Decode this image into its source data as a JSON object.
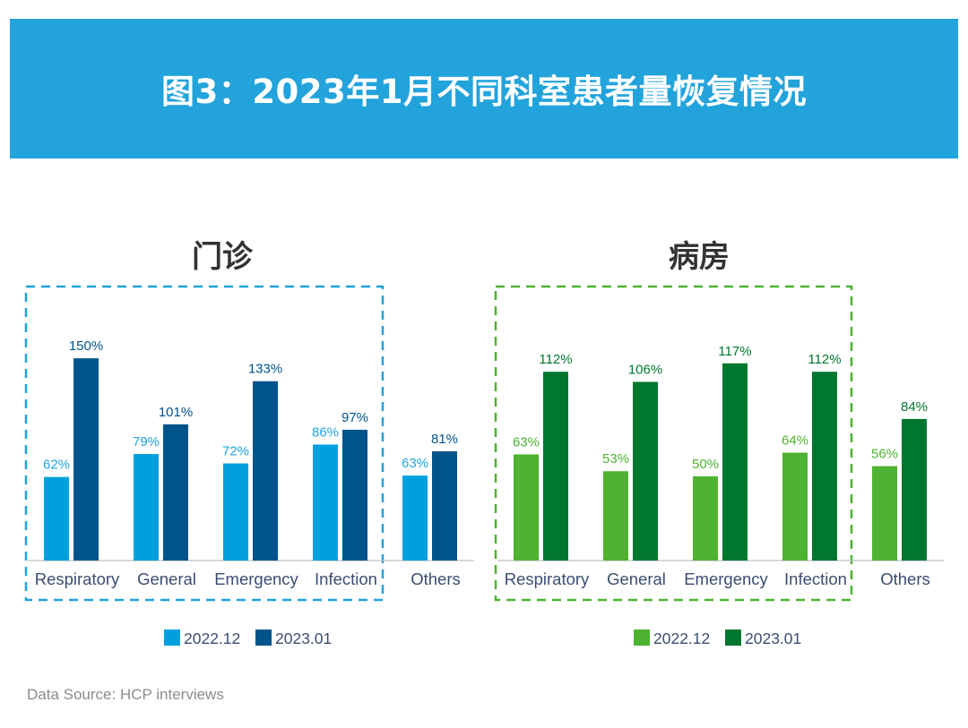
{
  "title": "图3：2023年1月不同科室患者量恢复情况",
  "source": "Data Source: HCP interviews",
  "chart_data": [
    {
      "type": "bar",
      "title": "门诊",
      "categories": [
        "Respiratory",
        "General",
        "Emergency",
        "Infection",
        "Others"
      ],
      "series": [
        {
          "name": "2022.12",
          "values": [
            62,
            79,
            72,
            86,
            63
          ],
          "color": "#00a0df"
        },
        {
          "name": "2023.01",
          "values": [
            150,
            101,
            133,
            97,
            81
          ],
          "color": "#00548c"
        }
      ],
      "value_suffix": "%",
      "ylim": [
        0,
        170
      ],
      "grid": false,
      "legend_position": "bottom",
      "frame_color": "#1fa4dc",
      "label_colors": [
        "#1fa4dc",
        "#00548c"
      ]
    },
    {
      "type": "bar",
      "title": "病房",
      "categories": [
        "Respiratory",
        "General",
        "Emergency",
        "Infection",
        "Others"
      ],
      "series": [
        {
          "name": "2022.12",
          "values": [
            63,
            53,
            50,
            64,
            56
          ],
          "color": "#4db330"
        },
        {
          "name": "2023.01",
          "values": [
            112,
            106,
            117,
            112,
            84
          ],
          "color": "#00772f"
        }
      ],
      "value_suffix": "%",
      "ylim": [
        0,
        136
      ],
      "grid": false,
      "legend_position": "bottom",
      "frame_color": "#4db330",
      "label_colors": [
        "#4db330",
        "#00772f"
      ]
    }
  ]
}
